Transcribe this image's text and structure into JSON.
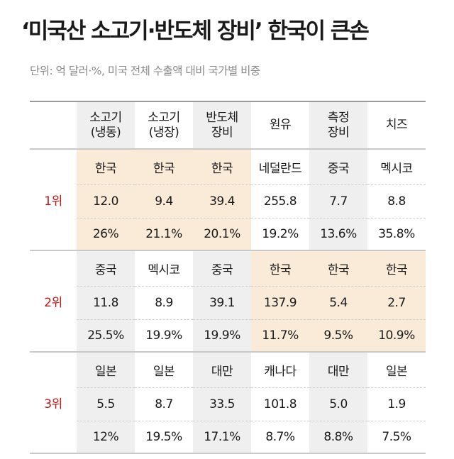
{
  "title": "‘미국산 소고기·반도체 장비’ 한국이 큰손",
  "subtitle": "단위: 억 달러·%, 미국 전체 수출액 대비 국가별 비중",
  "columns": [
    "소고기\n(냉동)",
    "소고기\n(냉장)",
    "반도체\n장비",
    "원유",
    "측정\n장비",
    "치즈"
  ],
  "ranks": [
    {
      "label": "1위",
      "countries": [
        "한국",
        "한국",
        "한국",
        "네덜란드",
        "중국",
        "멕시코"
      ],
      "amounts": [
        "12.0",
        "9.4",
        "39.4",
        "255.8",
        "7.7",
        "8.8"
      ],
      "shares": [
        "26%",
        "21.1%",
        "20.1%",
        "19.2%",
        "13.6%",
        "35.8%"
      ],
      "korea_highlight": [
        true,
        true,
        true,
        false,
        false,
        false
      ]
    },
    {
      "label": "2위",
      "countries": [
        "중국",
        "멕시코",
        "중국",
        "한국",
        "한국",
        "한국"
      ],
      "amounts": [
        "11.8",
        "8.9",
        "39.1",
        "137.9",
        "5.4",
        "2.7"
      ],
      "shares": [
        "25.5%",
        "19.9%",
        "19.9%",
        "11.7%",
        "9.5%",
        "10.9%"
      ],
      "korea_highlight": [
        false,
        false,
        false,
        true,
        true,
        true
      ]
    },
    {
      "label": "3위",
      "countries": [
        "일본",
        "일본",
        "대만",
        "캐나다",
        "대만",
        "일본"
      ],
      "amounts": [
        "5.5",
        "8.7",
        "33.5",
        "101.8",
        "5.0",
        "1.9"
      ],
      "shares": [
        "12%",
        "19.5%",
        "17.1%",
        "8.7%",
        "8.8%",
        "7.5%"
      ],
      "korea_highlight": [
        false,
        false,
        false,
        false,
        false,
        false
      ]
    }
  ],
  "colors": {
    "highlight": "#faebd9",
    "shaded_column": "#efefef",
    "rank_label": "#c01818"
  }
}
